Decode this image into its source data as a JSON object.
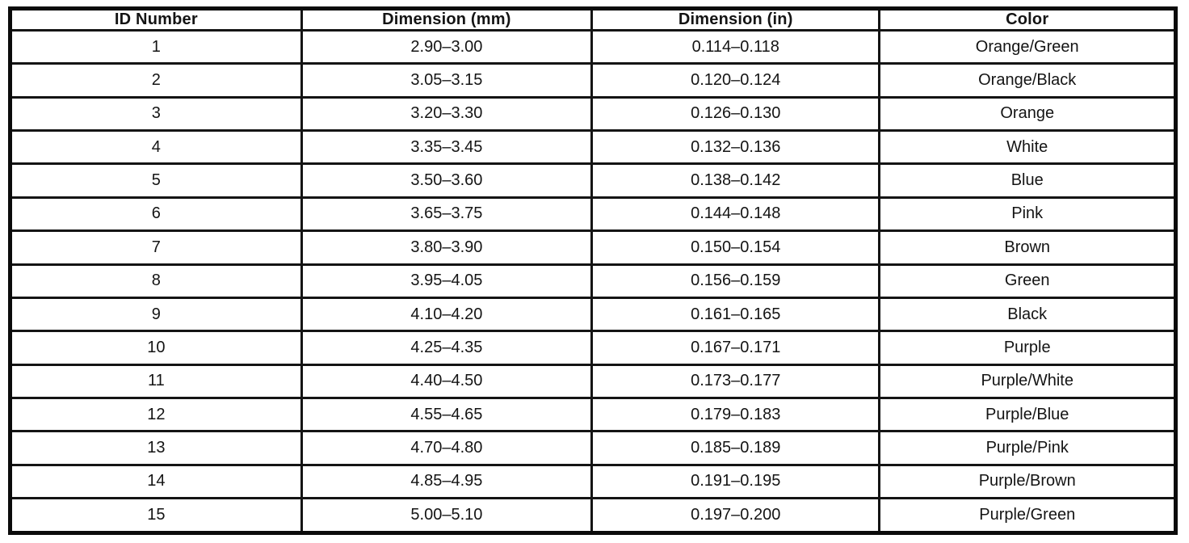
{
  "page": {
    "background": "#ffffff",
    "border_color": "#0b0b0b",
    "text_color": "#141414"
  },
  "table": {
    "headers": [
      "ID Number",
      "Dimension (mm)",
      "Dimension (in)",
      "Color"
    ],
    "rows": [
      [
        "1",
        "2.90–3.00",
        "0.114–0.118",
        "Orange/Green"
      ],
      [
        "2",
        "3.05–3.15",
        "0.120–0.124",
        "Orange/Black"
      ],
      [
        "3",
        "3.20–3.30",
        "0.126–0.130",
        "Orange"
      ],
      [
        "4",
        "3.35–3.45",
        "0.132–0.136",
        "White"
      ],
      [
        "5",
        "3.50–3.60",
        "0.138–0.142",
        "Blue"
      ],
      [
        "6",
        "3.65–3.75",
        "0.144–0.148",
        "Pink"
      ],
      [
        "7",
        "3.80–3.90",
        "0.150–0.154",
        "Brown"
      ],
      [
        "8",
        "3.95–4.05",
        "0.156–0.159",
        "Green"
      ],
      [
        "9",
        "4.10–4.20",
        "0.161–0.165",
        "Black"
      ],
      [
        "10",
        "4.25–4.35",
        "0.167–0.171",
        "Purple"
      ],
      [
        "11",
        "4.40–4.50",
        "0.173–0.177",
        "Purple/White"
      ],
      [
        "12",
        "4.55–4.65",
        "0.179–0.183",
        "Purple/Blue"
      ],
      [
        "13",
        "4.70–4.80",
        "0.185–0.189",
        "Purple/Pink"
      ],
      [
        "14",
        "4.85–4.95",
        "0.191–0.195",
        "Purple/Brown"
      ],
      [
        "15",
        "5.00–5.10",
        "0.197–0.200",
        "Purple/Green"
      ]
    ]
  }
}
